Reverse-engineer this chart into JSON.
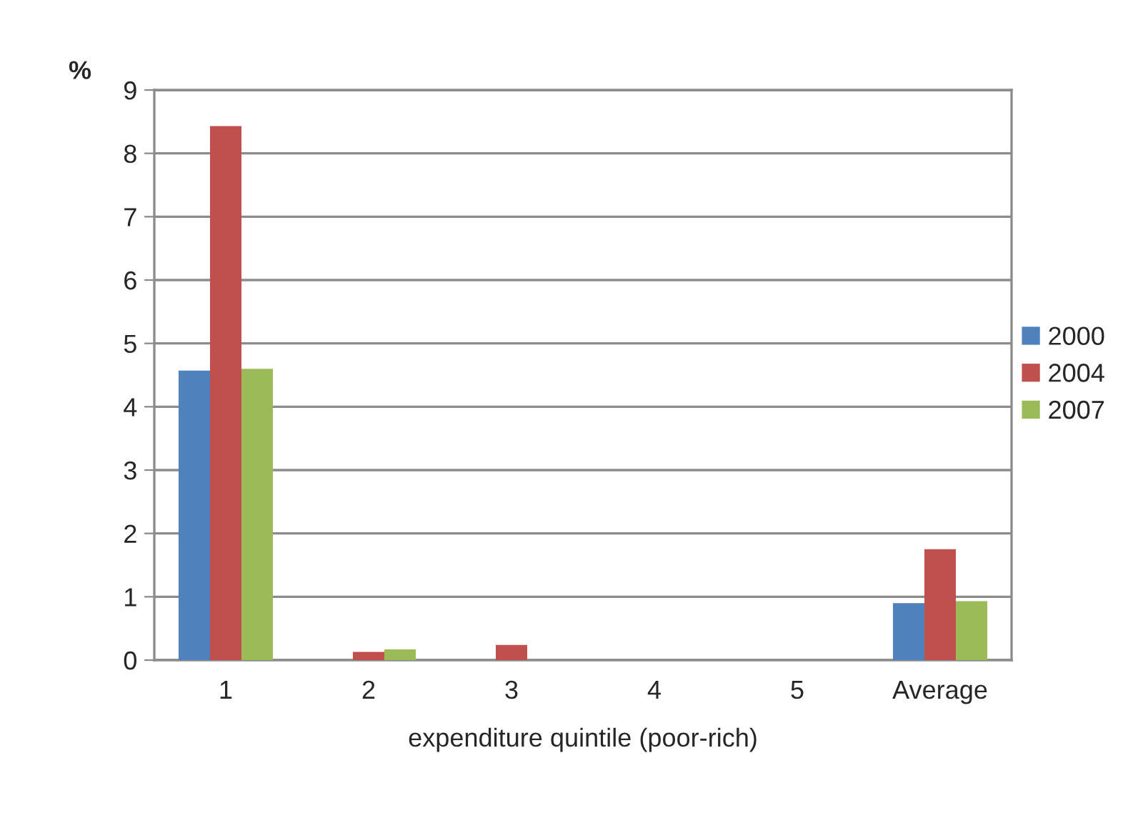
{
  "chart_data": {
    "type": "bar",
    "ylabel": "%",
    "xlabel": "expenditure quintile (poor-rich)",
    "categories": [
      "1",
      "2",
      "3",
      "4",
      "5",
      "Average"
    ],
    "series": [
      {
        "name": "2000",
        "color": "#4f81bd",
        "values": [
          4.57,
          0,
          0,
          0,
          0,
          0.9
        ]
      },
      {
        "name": "2004",
        "color": "#c0504d",
        "values": [
          8.43,
          0.13,
          0.24,
          0,
          0,
          1.75
        ]
      },
      {
        "name": "2007",
        "color": "#9bbb59",
        "values": [
          4.6,
          0.17,
          0,
          0,
          0,
          0.93
        ]
      }
    ],
    "ylim": [
      0,
      9
    ],
    "yticks": [
      0,
      1,
      2,
      3,
      4,
      5,
      6,
      7,
      8,
      9
    ],
    "grid": "y",
    "legend": "right"
  }
}
